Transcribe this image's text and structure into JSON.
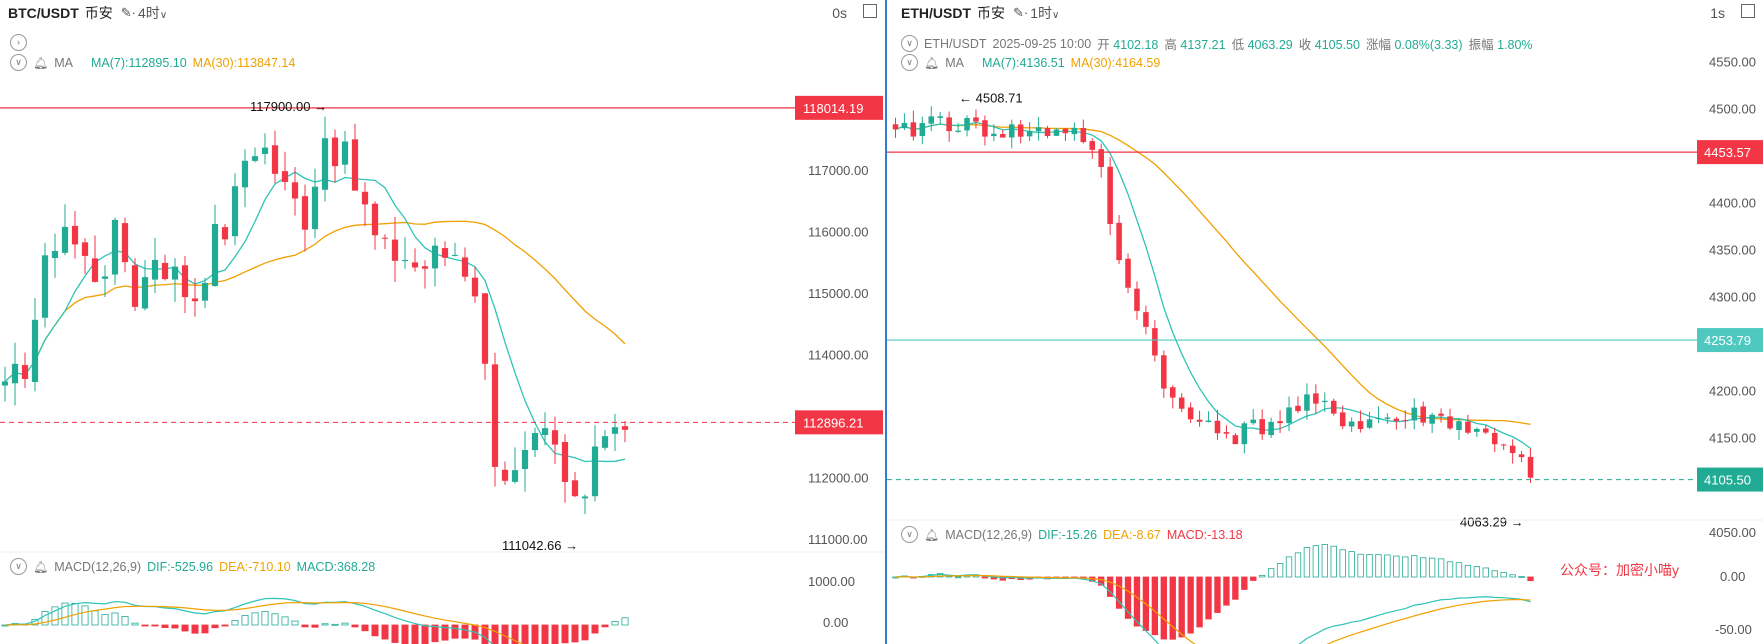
{
  "left": {
    "symbol": "BTC/USDT",
    "exchange": "币安",
    "timeframe": "4时",
    "realtime": "0s",
    "ma_label": "MA",
    "ma7": "MA(7):112895.10",
    "ma30": "MA(30):113847.14",
    "macd_label": "MACD(12,26,9)",
    "dif": "DIF:-525.96",
    "dea": "DEA:-710.10",
    "macd": "MACD:368.28",
    "price_axis": [
      "117000.00",
      "116000.00",
      "115000.00",
      "114000.00",
      "112000.00",
      "111000.00"
    ],
    "macd_axis": [
      "1000.00",
      "0.00"
    ],
    "resistance_price": "118014.19",
    "current_price": "112896.21",
    "high_label": "117900.00",
    "low_label": "111042.66"
  },
  "right": {
    "symbol": "ETH/USDT",
    "exchange": "币安",
    "timeframe": "1时",
    "realtime": "1s",
    "ohlc": {
      "pair": "ETH/USDT",
      "time": "2025-09-25 10:00",
      "open_label": "开",
      "open": "4102.18",
      "high_label": "高",
      "high": "4137.21",
      "low_label": "低",
      "low": "4063.29",
      "close_label": "收",
      "close": "4105.50",
      "change_label": "涨幅",
      "change": "0.08%(3.33)",
      "amp_label": "振幅",
      "amp": "1.80%"
    },
    "ma_label": "MA",
    "ma7": "MA(7):4136.51",
    "ma30": "MA(30):4164.59",
    "macd_label": "MACD(12,26,9)",
    "dif": "DIF:-15.26",
    "dea": "DEA:-8.67",
    "macd": "MACD:-13.18",
    "price_axis": [
      "4550.00",
      "4500.00",
      "4400.00",
      "4350.00",
      "4300.00",
      "4200.00",
      "4150.00",
      "4050.00"
    ],
    "macd_axis": [
      "0.00",
      "-50.00"
    ],
    "red_line_price": "4453.57",
    "cyan_line_price": "4253.79",
    "current_price": "4105.50",
    "high_label": "4508.71",
    "low_label": "4063.29",
    "watermark": "公众号：加密小喵y"
  },
  "colors": {
    "up": "#22ab94",
    "down": "#f23645",
    "ma7": "#2ec4b6",
    "ma30": "#f0a000",
    "divider": "#2f7bd6"
  }
}
